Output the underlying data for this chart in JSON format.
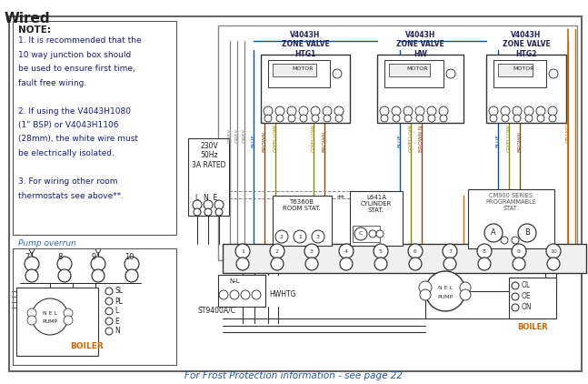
{
  "title": "Wired",
  "bg_color": "#ffffff",
  "border_color": "#666666",
  "note_lines": [
    "NOTE:",
    "1. It is recommended that the",
    "10 way junction box should",
    "be used to ensure first time,",
    "fault free wiring.",
    "",
    "2. If using the V4043H1080",
    "(1\" BSP) or V4043H1106",
    "(28mm), the white wire must",
    "be electrically isolated.",
    "",
    "3. For wiring other room",
    "thermostats see above**."
  ],
  "pump_overrun_label": "Pump overrun",
  "zone_valve_labels": [
    "V4043H\nZONE VALVE\nHTG1",
    "V4043H\nZONE VALVE\nHW",
    "V4043H\nZONE VALVE\nHTG2"
  ],
  "footer_text": "For Frost Protection information - see page 22",
  "power_label": "230V\n50Hz\n3A RATED",
  "st9400_label": "ST9400A/C",
  "hw_htg_label": "HWHTG",
  "boiler_label": "BOILER",
  "pump_label": "PUMP",
  "room_stat_label": "T6360B\nROOM STAT.",
  "cyl_stat_label": "L641A\nCYLINDER\nSTAT.",
  "cm900_label": "CM900 SERIES\nPROGRAMMABLE\nSTAT.",
  "blue": "#0055aa",
  "orange": "#cc6600",
  "gray": "#888888",
  "brown": "#8B4513",
  "gyellow": "#888800",
  "black": "#222222",
  "note_blue": "#2255aa",
  "pump_blue": "#3366cc"
}
